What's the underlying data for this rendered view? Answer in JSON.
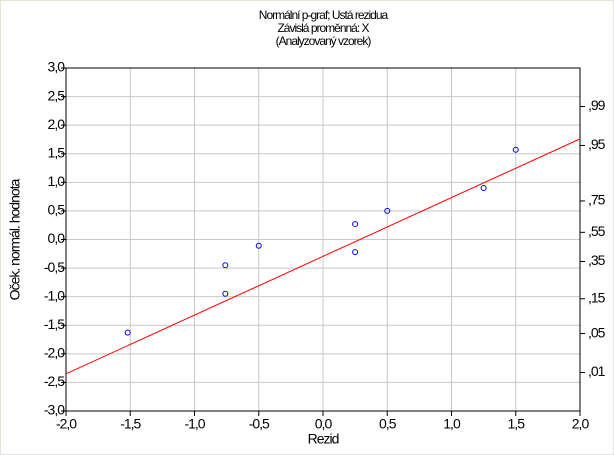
{
  "chart_data": {
    "type": "scatter",
    "title": [
      "Normální p-graf; Ustá rezidua",
      "Závislá proměnná: X",
      "(Analyzovaný vzorek)"
    ],
    "xlabel": "Rezid",
    "ylabel": "Oček. normál. hodnota",
    "series": [
      {
        "color": "#0000ff",
        "mode": "markers",
        "x": [
          -1.52,
          -0.76,
          -0.76,
          -0.5,
          0.25,
          0.25,
          0.5,
          1.25,
          1.5
        ],
        "values": [
          -1.63,
          -0.95,
          -0.45,
          -0.11,
          -0.22,
          0.27,
          0.5,
          0.9,
          1.57
        ]
      },
      {
        "color": "#ff0000",
        "mode": "line",
        "x": [
          -2,
          2
        ],
        "values": [
          -2.35,
          1.76
        ]
      }
    ],
    "xlim": [
      -2,
      2
    ],
    "xticks": [
      {
        "value": -2,
        "label": "-2,0"
      },
      {
        "value": -1.5,
        "label": "-1,5"
      },
      {
        "value": -1,
        "label": "-1,0"
      },
      {
        "value": -0.5,
        "label": "-0,5"
      },
      {
        "value": 0,
        "label": "0,0"
      },
      {
        "value": 0.5,
        "label": "0,5"
      },
      {
        "value": 1,
        "label": "1,0"
      },
      {
        "value": 1.5,
        "label": "1,5"
      },
      {
        "value": 2,
        "label": "2,0"
      }
    ],
    "ylim": [
      -3,
      3
    ],
    "yticks": [
      {
        "value": 3,
        "label": "3,0"
      },
      {
        "value": 2.5,
        "label": "2,5"
      },
      {
        "value": 2,
        "label": "2,0"
      },
      {
        "value": 1.5,
        "label": "1,5"
      },
      {
        "value": 1,
        "label": "1,0"
      },
      {
        "value": 0.5,
        "label": "0,5"
      },
      {
        "value": 0,
        "label": "0,0"
      },
      {
        "value": -0.5,
        "label": "-0,5"
      },
      {
        "value": -1,
        "label": "-1,0"
      },
      {
        "value": -1.5,
        "label": "-1,5"
      },
      {
        "value": -2,
        "label": "-2,0"
      },
      {
        "value": -2.5,
        "label": "-2,5"
      },
      {
        "value": -3,
        "label": "-3,0"
      }
    ],
    "y2scale": "probit",
    "y2ticks": [
      {
        "value": 0.99,
        "label": ",99"
      },
      {
        "value": 0.95,
        "label": ",95"
      },
      {
        "value": 0.75,
        "label": ",75"
      },
      {
        "value": 0.55,
        "label": ",55"
      },
      {
        "value": 0.35,
        "label": ",35"
      },
      {
        "value": 0.15,
        "label": ",15"
      },
      {
        "value": 0.05,
        "label": ",05"
      },
      {
        "value": 0.01,
        "label": ",01"
      }
    ],
    "grid": true
  }
}
